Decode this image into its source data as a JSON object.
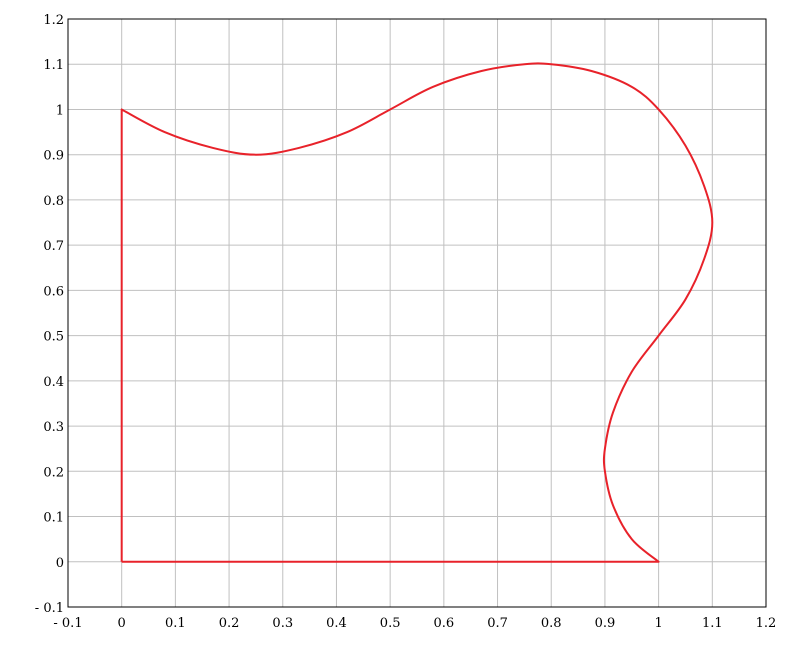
{
  "chart_data": {
    "type": "line",
    "title": "",
    "xlabel": "",
    "ylabel": "",
    "xlim": [
      -0.1,
      1.2
    ],
    "ylim": [
      -0.1,
      1.2
    ],
    "grid": true,
    "x_ticks": [
      -0.1,
      0,
      0.1,
      0.2,
      0.3,
      0.4,
      0.5,
      0.6,
      0.7,
      0.8,
      0.9,
      1,
      1.1,
      1.2
    ],
    "y_ticks": [
      -0.1,
      0,
      0.1,
      0.2,
      0.3,
      0.4,
      0.5,
      0.6,
      0.7,
      0.8,
      0.9,
      1,
      1.1,
      1.2
    ],
    "x_tick_labels": [
      "- 0.1",
      "0",
      "0.1",
      "0.2",
      "0.3",
      "0.4",
      "0.5",
      "0.6",
      "0.7",
      "0.8",
      "0.9",
      "1",
      "1.1",
      "1.2"
    ],
    "y_tick_labels": [
      "- 0.1",
      "0",
      "0.1",
      "0.2",
      "0.3",
      "0.4",
      "0.5",
      "0.6",
      "0.7",
      "0.8",
      "0.9",
      "1",
      "1.1",
      "1.2"
    ],
    "series": [
      {
        "color": "#e8222a",
        "points": [
          [
            0,
            0
          ],
          [
            1,
            0
          ],
          [
            0.95,
            0.05
          ],
          [
            0.915,
            0.125
          ],
          [
            0.9,
            0.2
          ],
          [
            0.9,
            0.25
          ],
          [
            0.915,
            0.33
          ],
          [
            0.95,
            0.42
          ],
          [
            1,
            0.5
          ],
          [
            1.05,
            0.58
          ],
          [
            1.085,
            0.67
          ],
          [
            1.1,
            0.75
          ],
          [
            1.085,
            0.83
          ],
          [
            1.05,
            0.92
          ],
          [
            1,
            1
          ],
          [
            0.95,
            1.05
          ],
          [
            0.875,
            1.085
          ],
          [
            0.8,
            1.1
          ],
          [
            0.75,
            1.1
          ],
          [
            0.67,
            1.085
          ],
          [
            0.58,
            1.05
          ],
          [
            0.5,
            1
          ],
          [
            0.42,
            0.95
          ],
          [
            0.33,
            0.915
          ],
          [
            0.25,
            0.9
          ],
          [
            0.17,
            0.915
          ],
          [
            0.08,
            0.95
          ],
          [
            0,
            1
          ],
          [
            0,
            0
          ]
        ]
      }
    ]
  },
  "colors": {
    "background": "#ffffff",
    "grid": "#c0c0c0",
    "axis": "#000000",
    "series": "#e8222a"
  }
}
